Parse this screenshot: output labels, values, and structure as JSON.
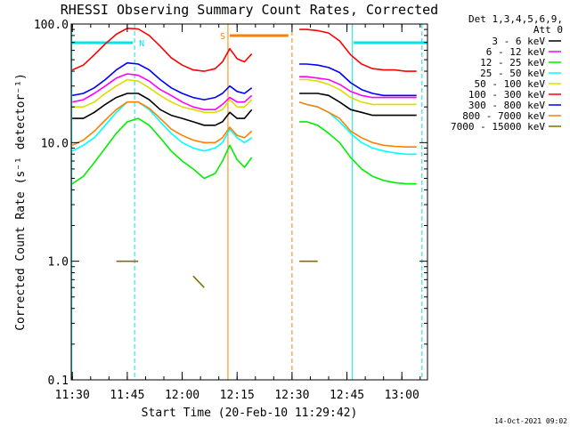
{
  "chart_data": {
    "type": "line",
    "title": "RHESSI Observing Summary Count Rates, Corrected",
    "xlabel": "Start Time (20-Feb-10 11:29:42)",
    "ylabel": "Corrected Count Rate (s⁻¹ detector⁻¹)",
    "yscale": "log",
    "ylim": [
      0.1,
      100.0
    ],
    "xlim": [
      "11:29:42",
      "13:07:00"
    ],
    "x_ticks": [
      "11:30",
      "11:45",
      "12:00",
      "12:15",
      "12:30",
      "12:45",
      "13:00"
    ],
    "y_ticks": [
      "0.1",
      "1.0",
      "10.0",
      "100.0"
    ],
    "detector_info": [
      "Det 1,3,4,5,6,9,",
      "Att 0"
    ],
    "timestamp": "14-Oct-2021 09:02",
    "flags": [
      {
        "label": "N",
        "color": "#00e5e5",
        "start": "11:29:42",
        "end": "11:46:30"
      },
      {
        "label": "",
        "color": "#00e5e5",
        "start": "12:46:50",
        "end": "13:07:00"
      },
      {
        "label": "S",
        "color": "#ff8000",
        "start": "12:13:00",
        "end": "12:29:00"
      }
    ],
    "vlines": [
      {
        "t": "11:29:50",
        "color": "#00e5e5",
        "style": "solid"
      },
      {
        "t": "11:47:00",
        "color": "#00e5e5",
        "style": "dashed"
      },
      {
        "t": "12:12:30",
        "color": "#ff8000",
        "style": "solid"
      },
      {
        "t": "12:30:00",
        "color": "#ff8000",
        "style": "dashed"
      },
      {
        "t": "12:46:30",
        "color": "#00e5e5",
        "style": "solid"
      },
      {
        "t": "13:05:30",
        "color": "#00e5e5",
        "style": "dashed"
      }
    ],
    "data_gap": [
      "12:19:30",
      "12:31:00"
    ],
    "time_samples": [
      "11:30",
      "11:33",
      "11:36",
      "11:39",
      "11:42",
      "11:45",
      "11:48",
      "11:51",
      "11:54",
      "11:57",
      "12:00",
      "12:03",
      "12:06",
      "12:09",
      "12:11",
      "12:13",
      "12:15",
      "12:17",
      "12:19",
      "12:32",
      "12:34",
      "12:37",
      "12:40",
      "12:43",
      "12:46",
      "12:49",
      "12:52",
      "12:55",
      "12:58",
      "13:01",
      "13:04"
    ],
    "series": [
      {
        "name": "3 - 6 keV",
        "color": "#000000",
        "values": [
          16,
          16,
          18,
          21,
          24,
          26,
          26,
          23,
          19,
          17,
          16,
          15,
          14,
          14,
          15,
          18,
          16,
          16,
          19,
          26,
          26,
          26,
          25,
          22,
          19,
          18,
          17,
          17,
          17,
          17,
          17
        ]
      },
      {
        "name": "6 - 12 keV",
        "color": "#ff00ff",
        "values": [
          22,
          23,
          26,
          30,
          35,
          38,
          37,
          33,
          28,
          25,
          22,
          20,
          19,
          19,
          21,
          24,
          22,
          22,
          25,
          36,
          36,
          35,
          34,
          31,
          27,
          25,
          24,
          24,
          24,
          24,
          24
        ]
      },
      {
        "name": "12 - 25 keV",
        "color": "#00ee00",
        "values": [
          4.5,
          5.2,
          6.8,
          9.0,
          12,
          15,
          16,
          14,
          11,
          8.5,
          7.0,
          6.0,
          5.0,
          5.5,
          7.0,
          9.5,
          7.2,
          6.2,
          7.5,
          15,
          15,
          14,
          12,
          10,
          7.5,
          6.0,
          5.2,
          4.8,
          4.6,
          4.5,
          4.5
        ]
      },
      {
        "name": "25 - 50 keV",
        "color": "#00ffff",
        "values": [
          8.5,
          9.5,
          11,
          14,
          18,
          22,
          22,
          19,
          15,
          12,
          10,
          9,
          8.5,
          9,
          10,
          13,
          11,
          10,
          11,
          22,
          21,
          20,
          18,
          15,
          12,
          10,
          9,
          8.5,
          8.2,
          8,
          8
        ]
      },
      {
        "name": "50 - 100 keV",
        "color": "#dddd00",
        "values": [
          20,
          20,
          22,
          26,
          30,
          34,
          33,
          29,
          25,
          22,
          20,
          19,
          18,
          18,
          19,
          23,
          20,
          20,
          23,
          34,
          34,
          33,
          31,
          28,
          24,
          22,
          21,
          21,
          21,
          21,
          21
        ]
      },
      {
        "name": "100 - 300 keV",
        "color": "#ff0000",
        "values": [
          41,
          45,
          55,
          68,
          82,
          92,
          91,
          80,
          65,
          52,
          45,
          41,
          40,
          42,
          48,
          62,
          51,
          48,
          56,
          90,
          90,
          88,
          84,
          72,
          55,
          46,
          42,
          41,
          41,
          40,
          40
        ]
      },
      {
        "name": "300 - 800 keV",
        "color": "#0000ff",
        "values": [
          25,
          26,
          29,
          34,
          41,
          47,
          46,
          41,
          34,
          29,
          26,
          24,
          23,
          24,
          26,
          30,
          27,
          26,
          29,
          46,
          46,
          45,
          43,
          39,
          32,
          28,
          26,
          25,
          25,
          25,
          25
        ]
      },
      {
        "name": "800 - 7000 keV",
        "color": "#ff7f00",
        "values": [
          9.5,
          10.5,
          12.5,
          15.5,
          19,
          22,
          22,
          19.5,
          16,
          13,
          11.5,
          10.5,
          10,
          10,
          11,
          13.5,
          11.5,
          11,
          12.5,
          22,
          21,
          20,
          18,
          16,
          12.5,
          11,
          10,
          9.5,
          9.3,
          9.2,
          9.2
        ]
      },
      {
        "name": "7000 - 15000 keV",
        "color": "#807000",
        "values": [
          null,
          null,
          null,
          null,
          1.0,
          1.0,
          1.0,
          null,
          null,
          null,
          null,
          0.75,
          0.6,
          null,
          null,
          null,
          null,
          null,
          null,
          1.0,
          1.0,
          1.0,
          null,
          null,
          null,
          null,
          null,
          null,
          null,
          null,
          null
        ]
      }
    ]
  }
}
